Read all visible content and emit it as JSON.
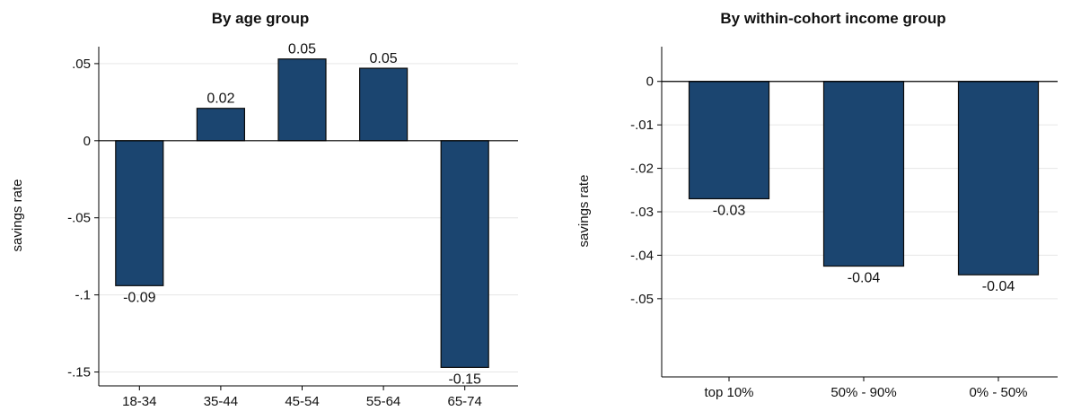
{
  "colors": {
    "bar": "#1b4570",
    "bar_edge": "#0a0a0a",
    "grid": "#e6e6e6",
    "axis": "#000000"
  },
  "chart_data": [
    {
      "type": "bar",
      "title": "By age group",
      "ylabel": "savings rate",
      "xlabel": "",
      "categories": [
        "18-34",
        "35-44",
        "45-54",
        "55-64",
        "65-74"
      ],
      "values": [
        -0.094,
        0.021,
        0.053,
        0.047,
        -0.147
      ],
      "data_labels": [
        "-0.09",
        "0.02",
        "0.05",
        "0.05",
        "-0.15"
      ],
      "yticks": [
        0.05,
        0,
        -0.05,
        -0.1,
        -0.15
      ],
      "ytick_labels": [
        ".05",
        "0",
        "-.05",
        "-.1",
        "-.15"
      ],
      "ylim": [
        -0.159,
        0.061
      ],
      "grid": true,
      "legend": "none"
    },
    {
      "type": "bar",
      "title": "By within-cohort income group",
      "ylabel": "savings rate",
      "xlabel": "",
      "categories": [
        "top 10%",
        "50% - 90%",
        "0% - 50%"
      ],
      "values": [
        -0.027,
        -0.0425,
        -0.0445
      ],
      "data_labels": [
        "-0.03",
        "-0.04",
        "-0.04"
      ],
      "yticks": [
        0,
        -0.01,
        -0.02,
        -0.03,
        -0.04,
        -0.05
      ],
      "ytick_labels": [
        "0",
        "-.01",
        "-.02",
        "-.03",
        "-.04",
        "-.05"
      ],
      "ylim": [
        -0.068,
        0.008
      ],
      "grid": true,
      "legend": "none"
    }
  ]
}
